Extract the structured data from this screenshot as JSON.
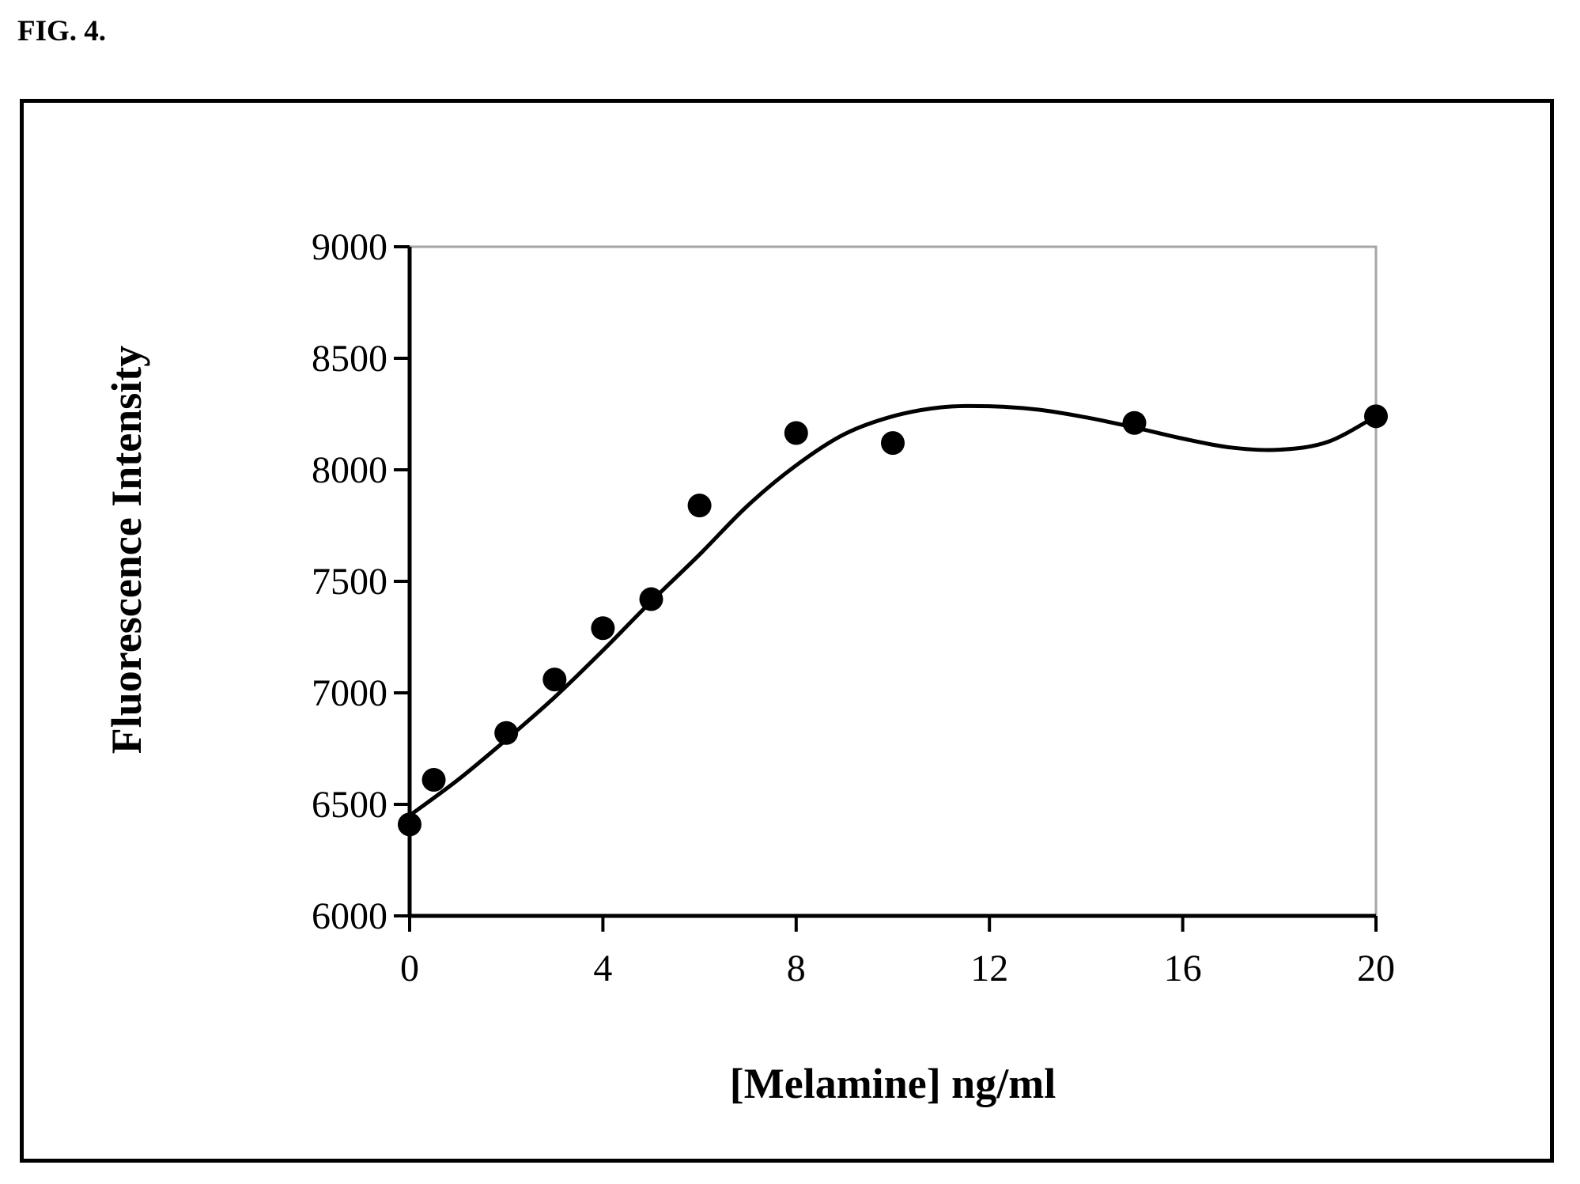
{
  "figure": {
    "label": "FIG. 4."
  },
  "chart_data": {
    "type": "scatter",
    "title": "",
    "xlabel": "[Melamine] ng/ml",
    "ylabel": "Fluorescence Intensity",
    "xlim": [
      0,
      20
    ],
    "ylim": [
      6000,
      9000
    ],
    "xticks": [
      0,
      4,
      8,
      12,
      16,
      20
    ],
    "yticks": [
      6000,
      6500,
      7000,
      7500,
      8000,
      8500,
      9000
    ],
    "grid": false,
    "legend": "none",
    "series": [
      {
        "type": "scatter",
        "x": [
          0,
          0.5,
          2,
          3,
          4,
          5,
          6,
          8,
          10,
          15,
          20
        ],
        "y": [
          6410,
          6610,
          6820,
          7060,
          7290,
          7420,
          7840,
          8165,
          8120,
          8210,
          8240
        ],
        "color": "#000000"
      },
      {
        "type": "line",
        "x": [
          0,
          1,
          2,
          3,
          4,
          5,
          6,
          7,
          8,
          9,
          10,
          11,
          12,
          13,
          14,
          15,
          16,
          17,
          18,
          19,
          20
        ],
        "y": [
          6450,
          6610,
          6790,
          6980,
          7190,
          7410,
          7620,
          7840,
          8020,
          8160,
          8240,
          8280,
          8285,
          8270,
          8235,
          8190,
          8140,
          8100,
          8090,
          8125,
          8240
        ],
        "color": "#000000"
      }
    ]
  }
}
